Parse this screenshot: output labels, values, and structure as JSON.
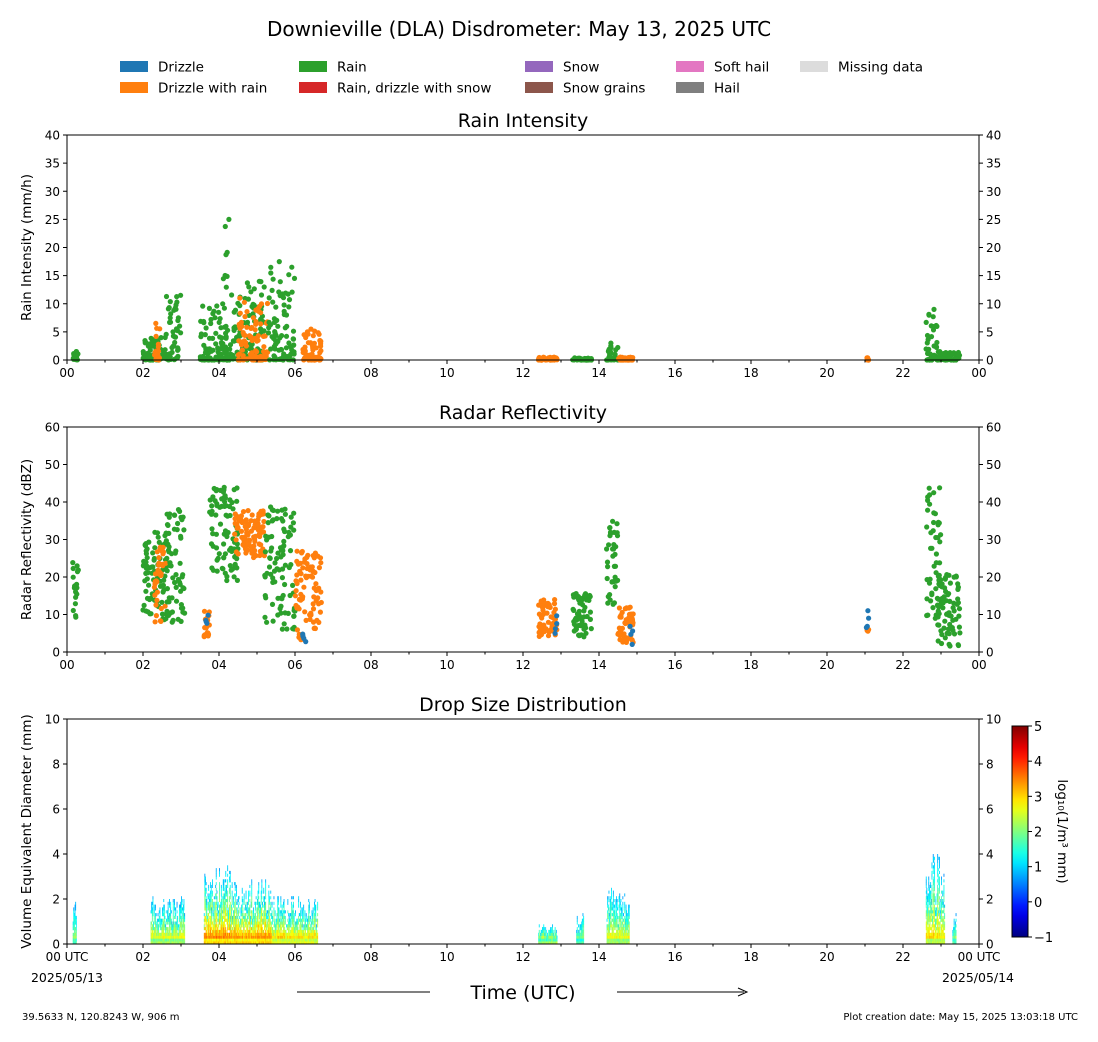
{
  "title": "Downieville (DLA) Disdrometer: May 13, 2025 UTC",
  "legend": {
    "placement": "top",
    "items": [
      {
        "label": "Drizzle",
        "color": "#1f77b4"
      },
      {
        "label": "Drizzle with rain",
        "color": "#ff7f0e"
      },
      {
        "label": "Rain",
        "color": "#2ca02c"
      },
      {
        "label": "Rain, drizzle with snow",
        "color": "#d62728"
      },
      {
        "label": "Snow",
        "color": "#9467bd"
      },
      {
        "label": "Snow grains",
        "color": "#8c564b"
      },
      {
        "label": "Soft hail",
        "color": "#e377c2"
      },
      {
        "label": "Hail",
        "color": "#7f7f7f"
      },
      {
        "label": "Missing data",
        "color": "#dcdcdc"
      }
    ]
  },
  "x_tick_labels": [
    "00",
    "02",
    "04",
    "06",
    "08",
    "10",
    "12",
    "14",
    "16",
    "18",
    "20",
    "22",
    "00"
  ],
  "x_tick_labels_bottom": [
    "00 UTC",
    "02",
    "04",
    "06",
    "08",
    "10",
    "12",
    "14",
    "16",
    "18",
    "20",
    "22",
    "00 UTC"
  ],
  "start_date": "2025/05/13",
  "end_date": "2025/05/14",
  "xlabel": "Time (UTC)",
  "footer_left": "39.5633 N, 120.8243 W, 906 m",
  "footer_right": "Plot creation date: May 15, 2025 13:03:18 UTC",
  "chart_data": [
    {
      "type": "scatter",
      "title": "Rain Intensity",
      "ylabel": "Rain Intensity (mm/h)",
      "xlim": [
        0,
        24
      ],
      "ylim": [
        0,
        40
      ],
      "y_ticks": [
        0,
        5,
        10,
        15,
        20,
        25,
        30,
        35,
        40
      ],
      "grid": false,
      "clusters": [
        {
          "x": [
            0.15,
            0.3
          ],
          "y_max": 1.5,
          "series": "Rain"
        },
        {
          "x": [
            2.0,
            2.6
          ],
          "y_max": 4,
          "series": "Rain"
        },
        {
          "x": [
            2.3,
            2.45
          ],
          "y_max": 6.5,
          "series": "Drizzle with rain"
        },
        {
          "x": [
            2.6,
            3.0
          ],
          "y_max": 11.5,
          "series": "Rain"
        },
        {
          "x": [
            3.5,
            4.2
          ],
          "y_max": 10,
          "series": "Rain"
        },
        {
          "x": [
            4.1,
            4.3
          ],
          "y_max": 25,
          "series": "Rain"
        },
        {
          "x": [
            4.3,
            5.2
          ],
          "y_max": 14,
          "series": "Rain"
        },
        {
          "x": [
            4.5,
            5.3
          ],
          "y_max": 11,
          "series": "Drizzle with rain"
        },
        {
          "x": [
            5.3,
            5.6
          ],
          "y_max": 17.5,
          "series": "Rain"
        },
        {
          "x": [
            5.6,
            6.0
          ],
          "y_max": 16.5,
          "series": "Rain"
        },
        {
          "x": [
            6.2,
            6.7
          ],
          "y_max": 5.5,
          "series": "Drizzle with rain"
        },
        {
          "x": [
            12.4,
            12.9
          ],
          "y_max": 0.5,
          "series": "Drizzle with rain"
        },
        {
          "x": [
            13.3,
            13.8
          ],
          "y_max": 0.4,
          "series": "Rain"
        },
        {
          "x": [
            14.2,
            14.5
          ],
          "y_max": 3,
          "series": "Rain"
        },
        {
          "x": [
            14.5,
            14.9
          ],
          "y_max": 0.5,
          "series": "Drizzle with rain"
        },
        {
          "x": [
            21.05,
            21.1
          ],
          "y_max": 0.4,
          "series": "Drizzle with rain"
        },
        {
          "x": [
            22.6,
            22.9
          ],
          "y_max": 9,
          "series": "Rain"
        },
        {
          "x": [
            22.9,
            23.5
          ],
          "y_max": 1.5,
          "series": "Rain"
        }
      ]
    },
    {
      "type": "scatter",
      "title": "Radar Reflectivity",
      "ylabel": "Radar Reflectivity (dBZ)",
      "xlim": [
        0,
        24
      ],
      "ylim": [
        0,
        60
      ],
      "y_ticks": [
        0,
        10,
        20,
        30,
        40,
        50,
        60
      ],
      "grid": false,
      "clusters": [
        {
          "x": [
            0.15,
            0.3
          ],
          "y": [
            9,
            26
          ],
          "series": "Rain"
        },
        {
          "x": [
            2.0,
            2.7
          ],
          "y": [
            8,
            32
          ],
          "series": "Rain"
        },
        {
          "x": [
            2.3,
            2.6
          ],
          "y": [
            8,
            28
          ],
          "series": "Drizzle with rain"
        },
        {
          "x": [
            2.6,
            3.1
          ],
          "y": [
            7,
            38
          ],
          "series": "Rain"
        },
        {
          "x": [
            3.6,
            3.75
          ],
          "y": [
            4,
            11
          ],
          "series": "Drizzle with rain"
        },
        {
          "x": [
            3.75,
            4.5
          ],
          "y": [
            19,
            44
          ],
          "series": "Rain"
        },
        {
          "x": [
            4.4,
            5.2
          ],
          "y": [
            25,
            38
          ],
          "series": "Drizzle with rain"
        },
        {
          "x": [
            5.2,
            6.0
          ],
          "y": [
            6,
            39
          ],
          "series": "Rain"
        },
        {
          "x": [
            6.0,
            6.3
          ],
          "y": [
            2,
            27
          ],
          "series": "Drizzle with rain"
        },
        {
          "x": [
            6.3,
            6.7
          ],
          "y": [
            6,
            27
          ],
          "series": "Drizzle with rain"
        },
        {
          "x": [
            12.4,
            12.9
          ],
          "y": [
            4,
            14
          ],
          "series": "Drizzle with rain"
        },
        {
          "x": [
            13.3,
            13.8
          ],
          "y": [
            4,
            16
          ],
          "series": "Rain"
        },
        {
          "x": [
            14.2,
            14.5
          ],
          "y": [
            12,
            35
          ],
          "series": "Rain"
        },
        {
          "x": [
            14.5,
            14.9
          ],
          "y": [
            2,
            12
          ],
          "series": "Drizzle with rain"
        },
        {
          "x": [
            21.05,
            21.1
          ],
          "y": [
            5.5,
            6
          ],
          "series": "Drizzle with rain"
        },
        {
          "x": [
            22.6,
            23.0
          ],
          "y": [
            8,
            44
          ],
          "series": "Rain"
        },
        {
          "x": [
            22.9,
            23.5
          ],
          "y": [
            1,
            21
          ],
          "series": "Rain"
        }
      ]
    },
    {
      "type": "heatmap",
      "title": "Drop Size Distribution",
      "ylabel": "Volume Equivalent Diameter (mm)",
      "xlim": [
        0,
        24
      ],
      "ylim": [
        0,
        10
      ],
      "y_ticks": [
        0,
        2,
        4,
        6,
        8,
        10
      ],
      "colorbar": {
        "label": "log₁₀(1/m³ mm)",
        "min": -1,
        "max": 5,
        "ticks": [
          -1,
          0,
          1,
          2,
          3,
          4,
          5
        ]
      },
      "clusters": [
        {
          "x": [
            0.15,
            0.25
          ],
          "d_max": 2.0,
          "intensity": 2.5
        },
        {
          "x": [
            2.2,
            3.1
          ],
          "d_max": 2.2,
          "intensity": 3.0
        },
        {
          "x": [
            3.6,
            4.3
          ],
          "d_max": 3.5,
          "intensity": 3.8
        },
        {
          "x": [
            4.3,
            5.4
          ],
          "d_max": 2.9,
          "intensity": 3.8
        },
        {
          "x": [
            5.4,
            6.6
          ],
          "d_max": 2.2,
          "intensity": 3.4
        },
        {
          "x": [
            12.4,
            12.9
          ],
          "d_max": 0.9,
          "intensity": 3.0
        },
        {
          "x": [
            13.4,
            13.6
          ],
          "d_max": 1.4,
          "intensity": 2.5
        },
        {
          "x": [
            14.2,
            14.8
          ],
          "d_max": 2.5,
          "intensity": 3.0
        },
        {
          "x": [
            22.6,
            23.1
          ],
          "d_max": 4.0,
          "intensity": 3.2
        },
        {
          "x": [
            23.3,
            23.4
          ],
          "d_max": 1.4,
          "intensity": 2.5
        }
      ]
    }
  ]
}
